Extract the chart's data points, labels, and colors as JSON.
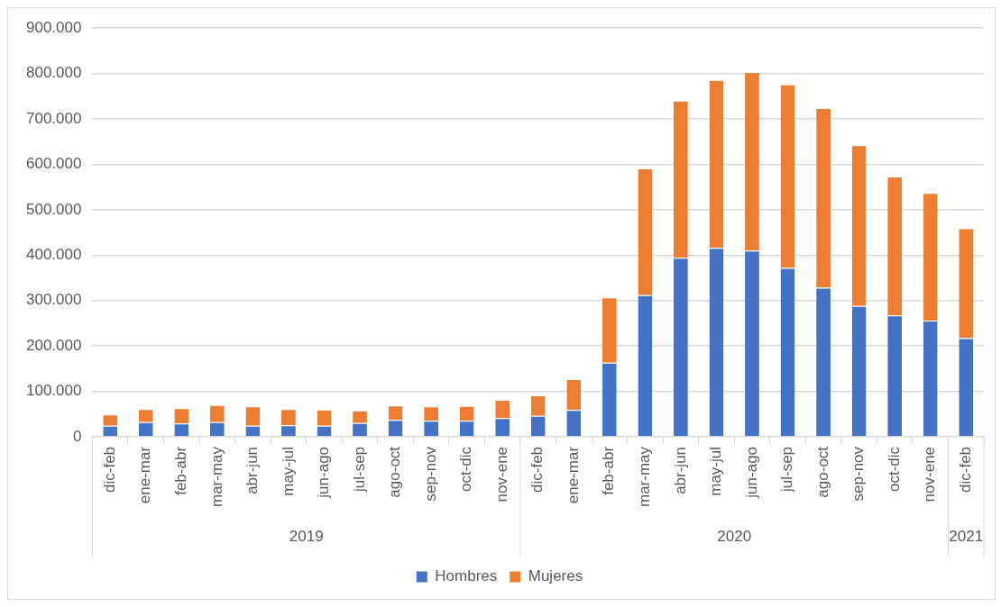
{
  "chart_data": {
    "type": "bar",
    "stacked": true,
    "categories": [
      "dic-feb",
      "ene-mar",
      "feb-abr",
      "mar-may",
      "abr-jun",
      "may-jul",
      "jun-ago",
      "jul-sep",
      "ago-oct",
      "sep-nov",
      "oct-dic",
      "nov-ene",
      "dic-feb",
      "ene-mar",
      "feb-abr",
      "mar-may",
      "abr-jun",
      "may-jul",
      "jun-ago",
      "jul-sep",
      "ago-oct",
      "sep-nov",
      "oct-dic",
      "nov-ene",
      "dic-feb"
    ],
    "series": [
      {
        "name": "Hombres",
        "color": "#4472c4",
        "values": [
          24000,
          32000,
          29000,
          32000,
          24000,
          25000,
          24000,
          30000,
          37000,
          35000,
          35000,
          41000,
          46000,
          59000,
          163000,
          312000,
          394000,
          416000,
          410000,
          372000,
          328000,
          288000,
          267000,
          256000,
          217000
        ]
      },
      {
        "name": "Mujeres",
        "color": "#ed7d31",
        "values": [
          25000,
          29000,
          34000,
          38000,
          43000,
          36000,
          36000,
          28000,
          32000,
          32000,
          33000,
          40000,
          45000,
          68000,
          144000,
          279000,
          346000,
          370000,
          393000,
          404000,
          396000,
          354000,
          306000,
          281000,
          242000
        ]
      }
    ],
    "ylim": [
      0,
      900000
    ],
    "yticks": [
      {
        "value": 0,
        "label": "0"
      },
      {
        "value": 100000,
        "label": "100.000"
      },
      {
        "value": 200000,
        "label": "200.000"
      },
      {
        "value": 300000,
        "label": "300.000"
      },
      {
        "value": 400000,
        "label": "400.000"
      },
      {
        "value": 500000,
        "label": "500.000"
      },
      {
        "value": 600000,
        "label": "600.000"
      },
      {
        "value": 700000,
        "label": "700.000"
      },
      {
        "value": 800000,
        "label": "800.000"
      },
      {
        "value": 900000,
        "label": "900.000"
      }
    ],
    "grid": "y",
    "legend": "bottom",
    "annotations": [
      "2019",
      "2020",
      "2021"
    ]
  }
}
